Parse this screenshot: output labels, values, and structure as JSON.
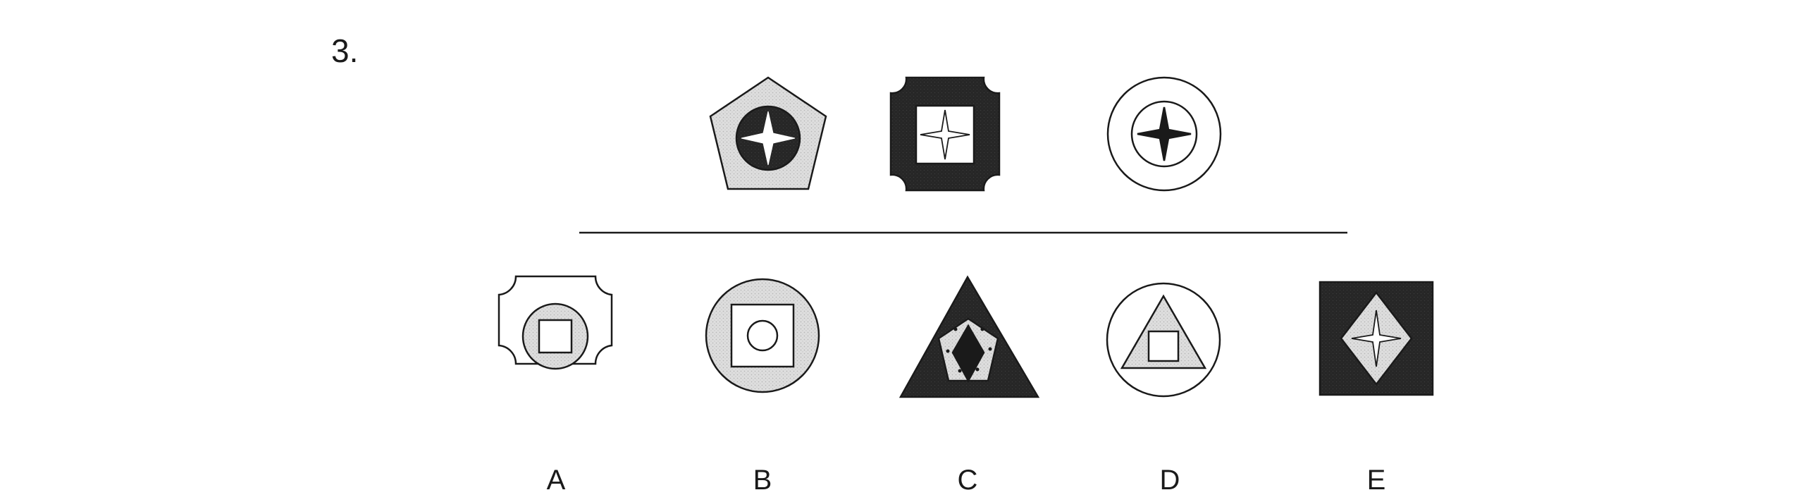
{
  "question": {
    "number": "3."
  },
  "colors": {
    "ink": "#1a1a1a",
    "light_gray": "#d9d9d9",
    "dark": "#262626",
    "white": "#ffffff"
  },
  "sequence": [
    {
      "shape": "pentagon",
      "fill": "light-gray",
      "inner": "circle",
      "inner_fill": "dark",
      "center": "four-point-star",
      "center_fill": "white"
    },
    {
      "shape": "notched-square",
      "fill": "dark",
      "inner": "square",
      "inner_fill": "white",
      "center": "four-point-star",
      "center_fill": "white"
    },
    {
      "shape": "circle",
      "fill": "white",
      "inner": "circle",
      "inner_fill": "white",
      "center": "four-point-star",
      "center_fill": "dark"
    }
  ],
  "options": [
    {
      "label": "A",
      "shape": "notched-square",
      "inner": "circle",
      "center": "square"
    },
    {
      "label": "B",
      "shape": "circle",
      "inner": "square",
      "center": "circle"
    },
    {
      "label": "C",
      "shape": "triangle",
      "inner": "pentagon",
      "center": "diamond"
    },
    {
      "label": "D",
      "shape": "circle",
      "inner": "triangle",
      "center": "square"
    },
    {
      "label": "E",
      "shape": "square",
      "inner": "diamond",
      "center": "four-point-star"
    }
  ]
}
